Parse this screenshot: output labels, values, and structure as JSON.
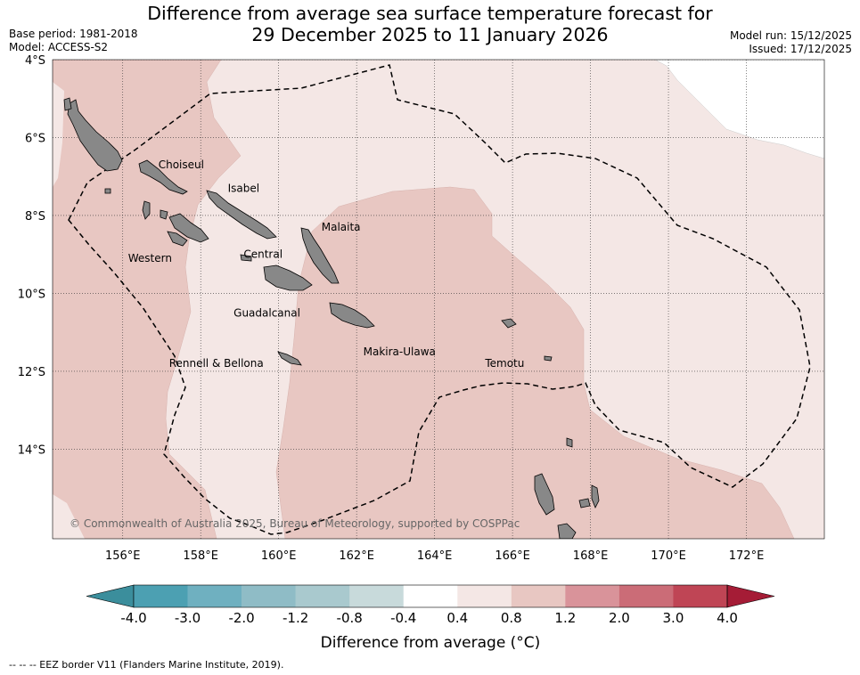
{
  "title_line1": "Difference from average sea surface temperature forecast for",
  "title_line2": "29 December 2025 to 11 January 2026",
  "base_period": "Base period: 1981-2018",
  "model": "Model: ACCESS-S2",
  "model_run": "Model run: 15/12/2025",
  "issued": "Issued: 17/12/2025",
  "copyright": "© Commonwealth of Australia 2025, Bureau of Meteorology, supported by COSPPac",
  "footer_note": "-- -- -- EEZ border V11 (Flanders Marine Institute, 2019).",
  "map": {
    "lon_range": [
      154.2,
      174.0
    ],
    "lat_range": [
      -16.3,
      -4.0
    ],
    "lon_ticks": [
      "156°E",
      "158°E",
      "160°E",
      "162°E",
      "164°E",
      "166°E",
      "168°E",
      "170°E",
      "172°E"
    ],
    "lat_ticks": [
      "4°S",
      "6°S",
      "8°S",
      "10°S",
      "12°S",
      "14°S"
    ],
    "province_labels": [
      {
        "name": "Choiseul",
        "lon": 157.5,
        "lat": -6.7
      },
      {
        "name": "Isabel",
        "lon": 159.1,
        "lat": -7.3
      },
      {
        "name": "Malaita",
        "lon": 161.6,
        "lat": -8.3
      },
      {
        "name": "Western",
        "lon": 156.7,
        "lat": -9.1
      },
      {
        "name": "Central",
        "lon": 159.6,
        "lat": -9.0
      },
      {
        "name": "Guadalcanal",
        "lon": 159.7,
        "lat": -10.5
      },
      {
        "name": "Rennell & Bellona",
        "lon": 158.4,
        "lat": -11.8
      },
      {
        "name": "Makira-Ulawa",
        "lon": 163.1,
        "lat": -11.5
      },
      {
        "name": "Temotu",
        "lon": 165.8,
        "lat": -11.8
      }
    ],
    "colors": {
      "land": "#888888",
      "anom_04_08": "#f4e7e5",
      "anom_08_12": "#e8c7c2",
      "nodata": "#ffffff"
    }
  },
  "colorbar": {
    "label": "Difference from average (°C)",
    "tick_labels": [
      "-4.0",
      "-3.0",
      "-2.0",
      "-1.2",
      "-0.8",
      "-0.4",
      "0.4",
      "0.8",
      "1.2",
      "2.0",
      "3.0",
      "4.0"
    ],
    "colors": [
      "#3b8e9c",
      "#4ca0b2",
      "#6fb0c0",
      "#8fbcc6",
      "#a9c9ce",
      "#c8dadb",
      "#ffffff",
      "#f4e7e5",
      "#e8c7c2",
      "#d9939a",
      "#cb6c77",
      "#bf4555",
      "#a51c36"
    ]
  }
}
